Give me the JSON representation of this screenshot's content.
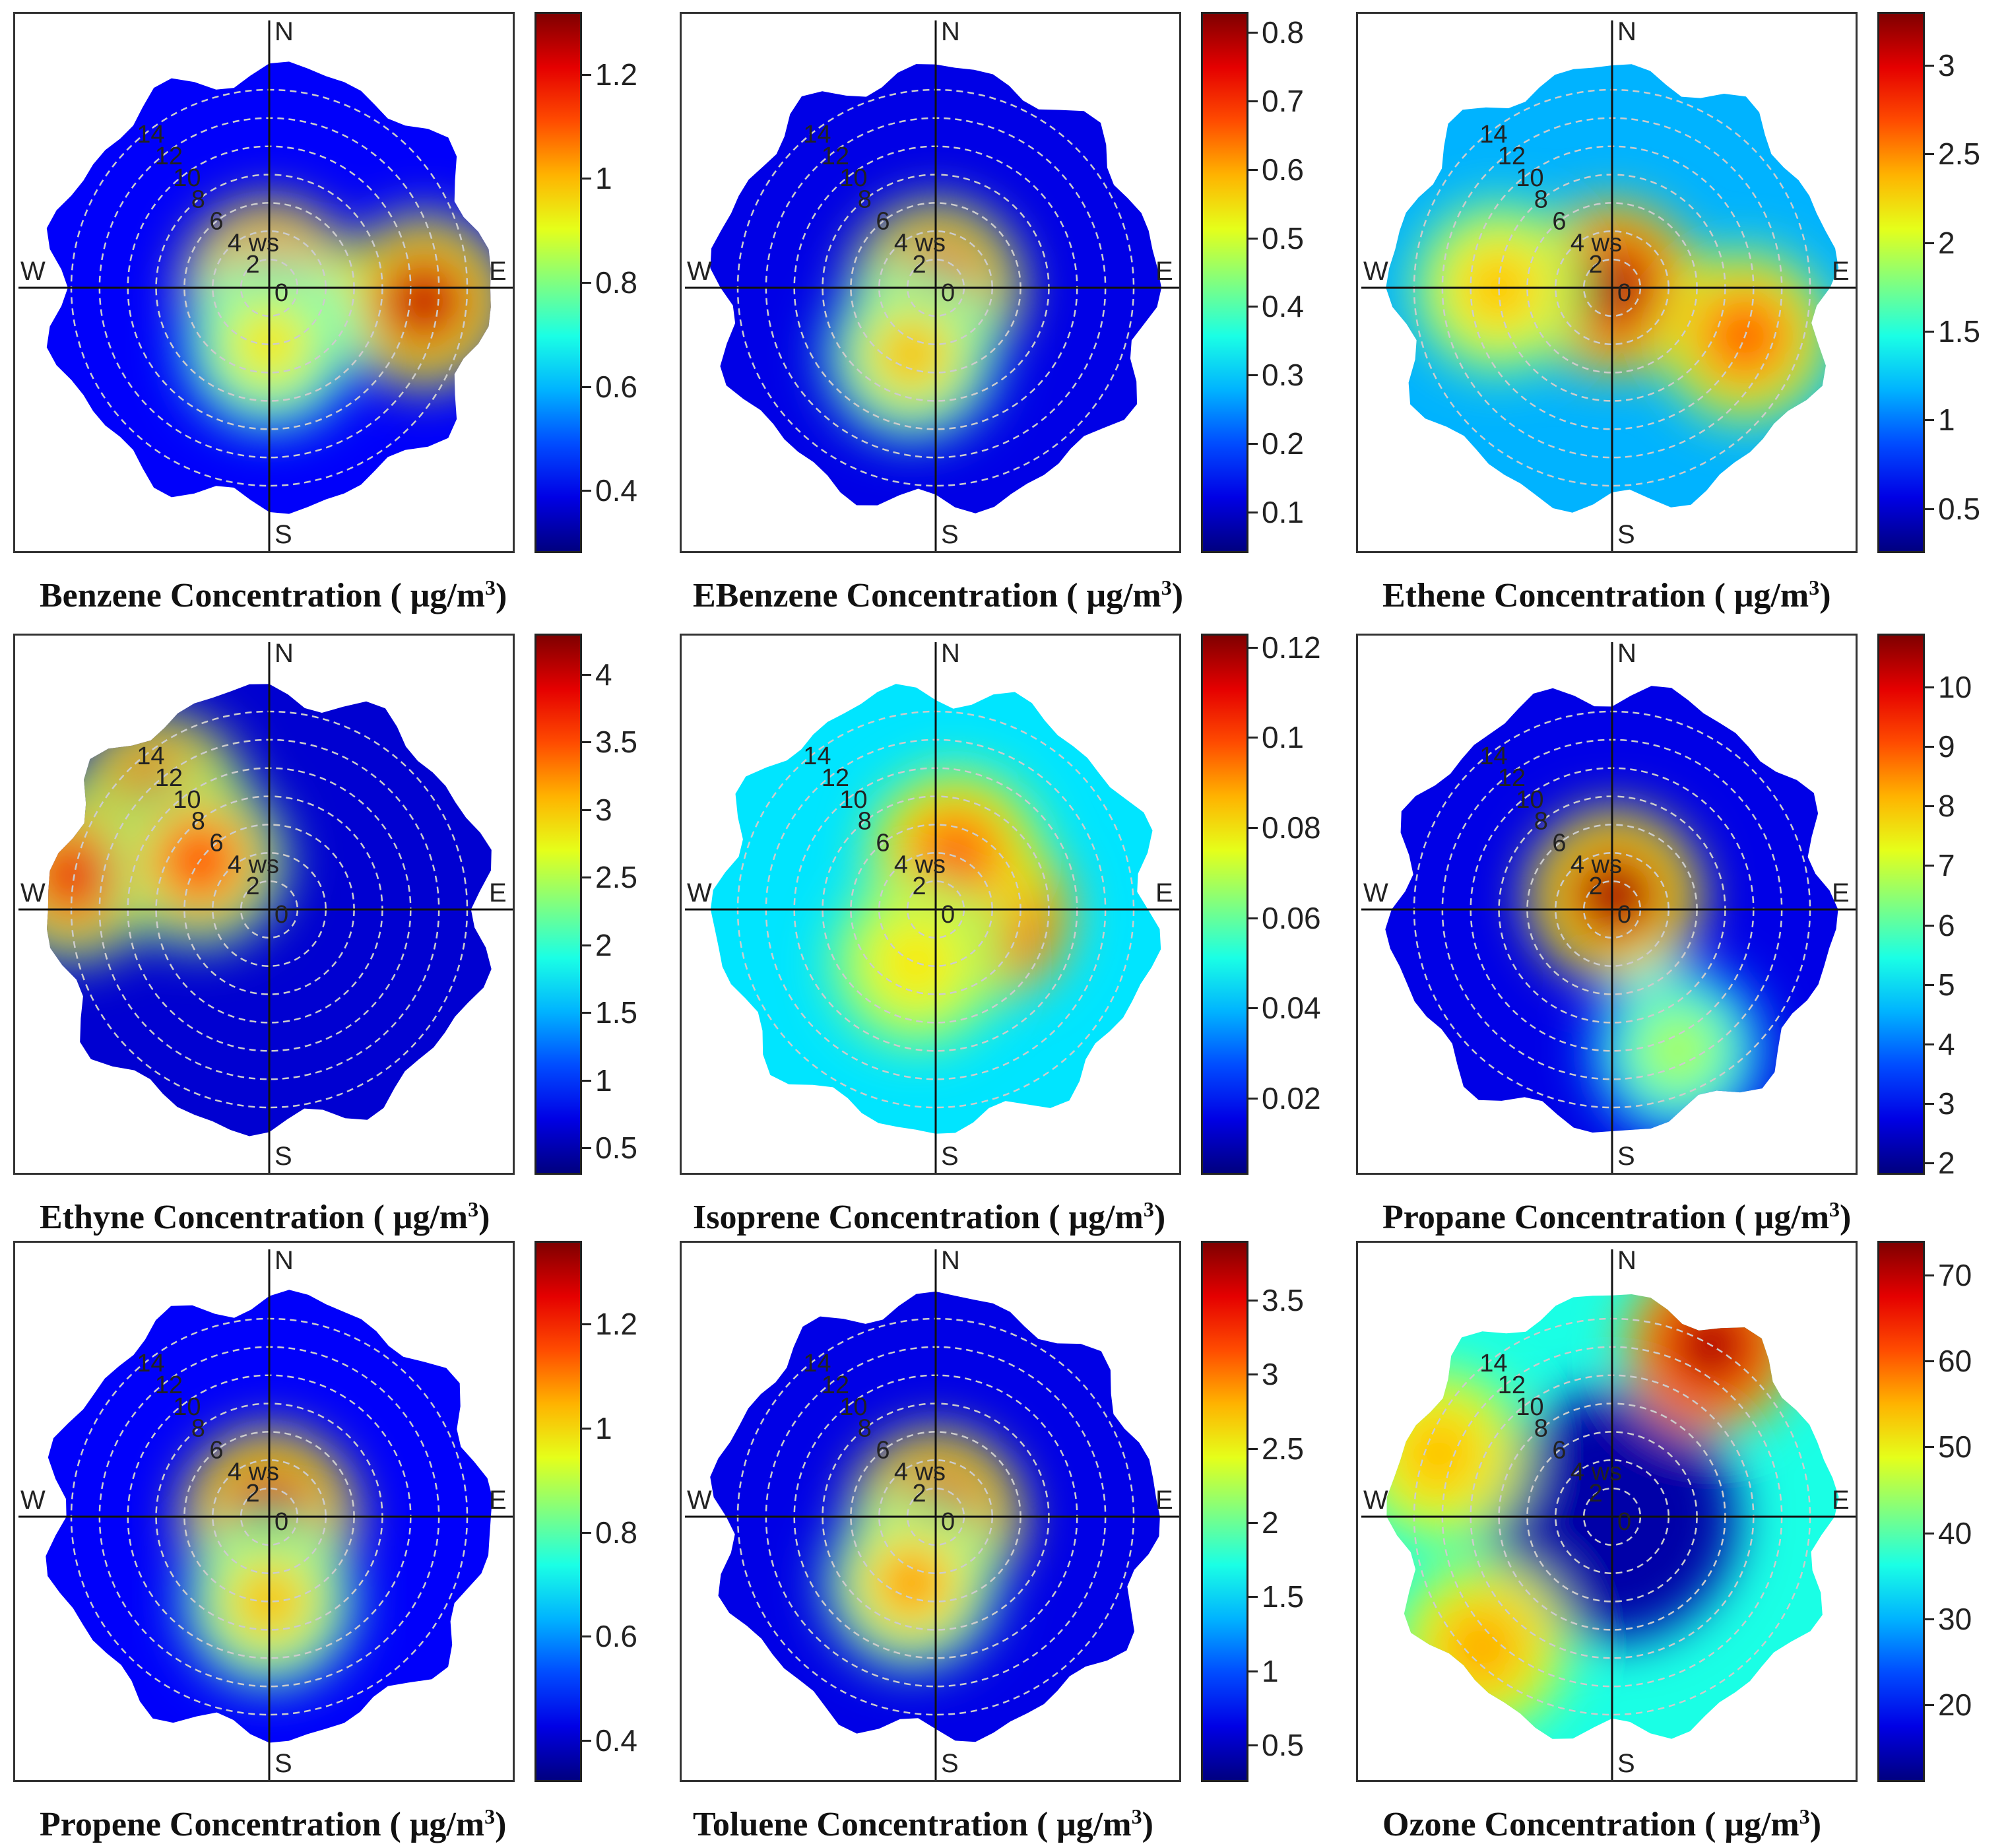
{
  "chart_data": [
    {
      "type": "heatmap",
      "subtype": "polar",
      "species": "Benzene",
      "caption_prefix": "Benzene",
      "caption_suffix": "Concentration ( μg/m",
      "caption_sup": "3",
      "caption_close": ")",
      "cbar_ticks": [
        0.4,
        0.6,
        0.8,
        1,
        1.2
      ],
      "cbar_range": [
        0.28,
        1.32
      ],
      "ws_rings": [
        2,
        4,
        6,
        8,
        10,
        12,
        14
      ],
      "ws_unit": "ws",
      "compass": [
        "N",
        "E",
        "S",
        "W"
      ],
      "hotspots": [
        {
          "theta": 0,
          "r": 0,
          "level": 1.0
        },
        {
          "theta": 95,
          "r": 11,
          "level": 0.95
        },
        {
          "theta": 180,
          "r": 4,
          "level": 0.65
        }
      ],
      "background_level": 0.12
    },
    {
      "type": "heatmap",
      "subtype": "polar",
      "species": "EBenzene",
      "caption_prefix": "EBenzene",
      "caption_suffix": "Concentration ( μg/m",
      "caption_sup": "3",
      "caption_close": ")",
      "cbar_ticks": [
        0.1,
        0.2,
        0.3,
        0.4,
        0.5,
        0.6,
        0.7,
        0.8
      ],
      "cbar_range": [
        0.04,
        0.83
      ],
      "ws_rings": [
        2,
        4,
        6,
        8,
        10,
        12,
        14
      ],
      "ws_unit": "ws",
      "compass": [
        "N",
        "E",
        "S",
        "W"
      ],
      "hotspots": [
        {
          "theta": 0,
          "r": 0,
          "level": 0.95
        },
        {
          "theta": 200,
          "r": 5,
          "level": 0.7
        }
      ],
      "background_level": 0.1
    },
    {
      "type": "heatmap",
      "subtype": "polar",
      "species": "Ethene",
      "caption_prefix": "Ethene",
      "caption_suffix": "Concentration ( μg/m",
      "caption_sup": "3",
      "caption_close": ")",
      "cbar_ticks": [
        0.5,
        1,
        1.5,
        2,
        2.5,
        3
      ],
      "cbar_range": [
        0.25,
        3.3
      ],
      "ws_rings": [
        2,
        4,
        6,
        8,
        10,
        12,
        14
      ],
      "ws_unit": "ws",
      "compass": [
        "N",
        "E",
        "S",
        "W"
      ],
      "hotspots": [
        {
          "theta": 0,
          "r": 0,
          "level": 0.98
        },
        {
          "theta": 110,
          "r": 10,
          "level": 0.8
        },
        {
          "theta": 270,
          "r": 8,
          "level": 0.7
        }
      ],
      "background_level": 0.3
    },
    {
      "type": "heatmap",
      "subtype": "polar",
      "species": "Ethyne",
      "caption_prefix": "Ethyne",
      "caption_suffix": "Concentration ( μg/m",
      "caption_sup": "3",
      "caption_close": ")",
      "cbar_ticks": [
        0.5,
        1,
        1.5,
        2,
        2.5,
        3,
        3.5,
        4
      ],
      "cbar_range": [
        0.3,
        4.3
      ],
      "ws_rings": [
        2,
        4,
        6,
        8,
        10,
        12,
        14
      ],
      "ws_unit": "ws",
      "compass": [
        "N",
        "E",
        "S",
        "W"
      ],
      "hotspots": [
        {
          "theta": 315,
          "r": 11,
          "level": 0.95
        },
        {
          "theta": 280,
          "r": 14,
          "level": 0.9
        },
        {
          "theta": 305,
          "r": 6,
          "level": 0.85
        }
      ],
      "background_level": 0.08
    },
    {
      "type": "heatmap",
      "subtype": "polar",
      "species": "Isoprene",
      "caption_prefix": "Isoprene",
      "caption_suffix": "Concentration ( μg/m",
      "caption_sup": "3",
      "caption_close": ")",
      "cbar_ticks": [
        0.02,
        0.04,
        0.06,
        0.08,
        0.1,
        0.12
      ],
      "cbar_range": [
        0.003,
        0.123
      ],
      "ws_rings": [
        2,
        4,
        6,
        8,
        10,
        12,
        14
      ],
      "ws_unit": "ws",
      "compass": [
        "N",
        "E",
        "S",
        "W"
      ],
      "hotspots": [
        {
          "theta": 95,
          "r": 3.5,
          "level": 0.98
        },
        {
          "theta": 20,
          "r": 4,
          "level": 0.8
        },
        {
          "theta": 200,
          "r": 4,
          "level": 0.65
        }
      ],
      "background_level": 0.35
    },
    {
      "type": "heatmap",
      "subtype": "polar",
      "species": "Propane",
      "caption_prefix": "Propane",
      "caption_suffix": "Concentration ( μg/m",
      "caption_sup": "3",
      "caption_close": ")",
      "cbar_ticks": [
        2,
        3,
        4,
        5,
        6,
        7,
        8,
        9,
        10
      ],
      "cbar_range": [
        1.8,
        10.9
      ],
      "ws_rings": [
        2,
        4,
        6,
        8,
        10,
        12,
        14
      ],
      "ws_unit": "ws",
      "compass": [
        "N",
        "E",
        "S",
        "W"
      ],
      "hotspots": [
        {
          "theta": 10,
          "r": 1,
          "level": 1.0
        },
        {
          "theta": 155,
          "r": 11,
          "level": 0.55
        }
      ],
      "background_level": 0.1
    },
    {
      "type": "heatmap",
      "subtype": "polar",
      "species": "Propene",
      "caption_prefix": "Propene",
      "caption_suffix": "Concentration ( μg/m",
      "caption_sup": "3",
      "caption_close": ")",
      "cbar_ticks": [
        0.4,
        0.6,
        0.8,
        1,
        1.2
      ],
      "cbar_range": [
        0.32,
        1.36
      ],
      "ws_rings": [
        2,
        4,
        6,
        8,
        10,
        12,
        14
      ],
      "ws_unit": "ws",
      "compass": [
        "N",
        "E",
        "S",
        "W"
      ],
      "hotspots": [
        {
          "theta": 0,
          "r": 0,
          "level": 1.0
        },
        {
          "theta": 180,
          "r": 6,
          "level": 0.7
        }
      ],
      "background_level": 0.12
    },
    {
      "type": "heatmap",
      "subtype": "polar",
      "species": "Toluene",
      "caption_prefix": "Toluene",
      "caption_suffix": "Concentration ( μg/m",
      "caption_sup": "3",
      "caption_close": ")",
      "cbar_ticks": [
        0.5,
        1,
        1.5,
        2,
        2.5,
        3,
        3.5
      ],
      "cbar_range": [
        0.25,
        3.9
      ],
      "ws_rings": [
        2,
        4,
        6,
        8,
        10,
        12,
        14
      ],
      "ws_unit": "ws",
      "compass": [
        "N",
        "E",
        "S",
        "W"
      ],
      "hotspots": [
        {
          "theta": 0,
          "r": 0,
          "level": 1.0
        },
        {
          "theta": 200,
          "r": 5,
          "level": 0.75
        }
      ],
      "background_level": 0.1
    },
    {
      "type": "heatmap",
      "subtype": "polar",
      "species": "Ozone",
      "caption_prefix": "Ozone",
      "caption_suffix": "Concentration ( μg/m",
      "caption_sup": "3",
      "caption_close": ")",
      "cbar_ticks": [
        20,
        30,
        40,
        50,
        60,
        70
      ],
      "cbar_range": [
        11,
        74
      ],
      "ws_rings": [
        2,
        4,
        6,
        8,
        10,
        12,
        14
      ],
      "ws_unit": "ws",
      "compass": [
        "N",
        "E",
        "S",
        "W"
      ],
      "hotspots": [
        {
          "theta": 30,
          "r": 14,
          "level": 0.98
        },
        {
          "theta": 290,
          "r": 13,
          "level": 0.7
        },
        {
          "theta": 225,
          "r": 13,
          "level": 0.72
        }
      ],
      "background_level": 0.4,
      "center_low": true
    }
  ]
}
